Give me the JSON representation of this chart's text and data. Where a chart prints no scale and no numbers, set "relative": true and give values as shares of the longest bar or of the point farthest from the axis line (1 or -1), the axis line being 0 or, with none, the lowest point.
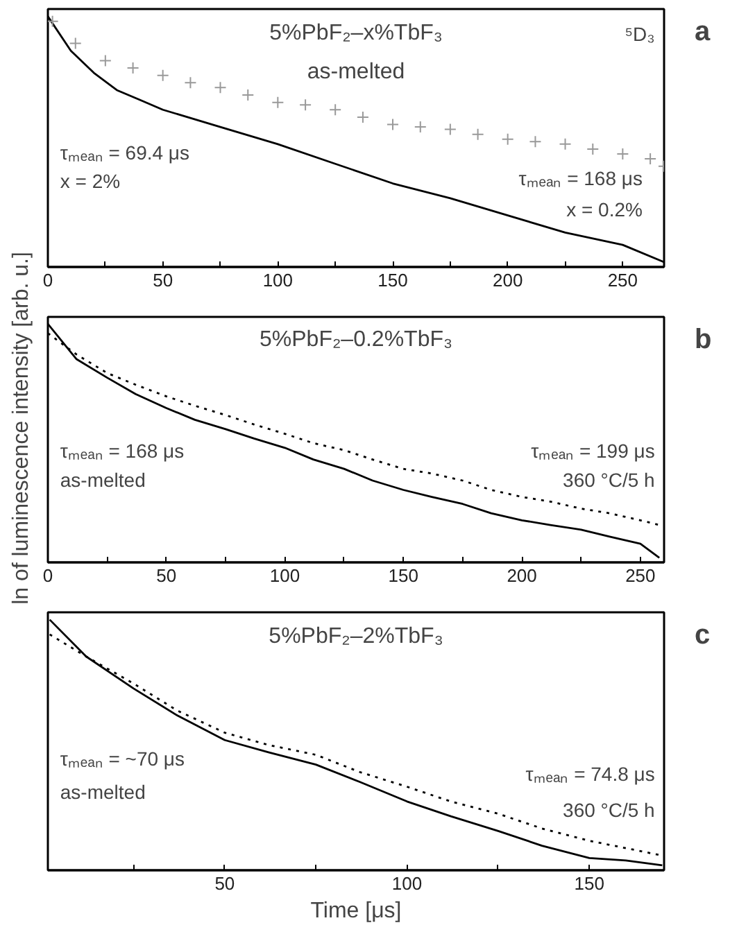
{
  "chart_data": [
    {
      "type": "line",
      "title": "5%PbF₂–x%TbF₃",
      "subtitle": "as-melted",
      "relative": true,
      "xlim": [
        0,
        268
      ],
      "xticks": [
        0,
        {
          "value": 25,
          "label": null
        },
        50,
        {
          "value": 75,
          "label": null
        },
        100,
        {
          "value": 125,
          "label": null
        },
        150,
        {
          "value": 175,
          "label": null
        },
        200,
        {
          "value": 225,
          "label": null
        },
        250
      ],
      "annotations": [
        "⁵D₃",
        "τₘₑₐₙ = 69.4 μs",
        "x = 2%",
        "τₘₑₐₙ = 168 μs",
        "x = 0.2%",
        "a"
      ],
      "series": [
        {
          "color": "#000000",
          "x": [
            0,
            10,
            20,
            30,
            40,
            50,
            75,
            100,
            125,
            150,
            175,
            200,
            225,
            250,
            268
          ],
          "values": [
            1.0,
            0.86,
            0.77,
            0.7,
            0.66,
            0.62,
            0.55,
            0.48,
            0.4,
            0.32,
            0.26,
            0.19,
            0.12,
            0.07,
            0.0
          ]
        },
        {
          "type": "scatter",
          "marker": "cross",
          "color": "#999999",
          "x": [
            2,
            12,
            25,
            37,
            50,
            62,
            75,
            87,
            100,
            112,
            125,
            137,
            150,
            162,
            175,
            187,
            200,
            212,
            225,
            237,
            250,
            262,
            268
          ],
          "values": [
            0.98,
            0.89,
            0.82,
            0.79,
            0.76,
            0.73,
            0.71,
            0.68,
            0.65,
            0.64,
            0.62,
            0.59,
            0.56,
            0.55,
            0.54,
            0.52,
            0.5,
            0.49,
            0.48,
            0.46,
            0.44,
            0.42,
            0.39
          ]
        }
      ]
    },
    {
      "type": "line",
      "title": "5%PbF₂–0.2%TbF₃",
      "relative": true,
      "xlim": [
        0,
        260
      ],
      "xticks": [
        0,
        {
          "value": 25,
          "label": null
        },
        50,
        {
          "value": 75,
          "label": null
        },
        100,
        {
          "value": 125,
          "label": null
        },
        150,
        {
          "value": 175,
          "label": null
        },
        200,
        {
          "value": 225,
          "label": null
        },
        250
      ],
      "ylabel": "ln of luminescence intensity [arb. u.]",
      "annotations": [
        "τₘₑₐₙ = 168 μs",
        "as-melted",
        "τₘₑₐₙ = 199 μs",
        "360 °C/5 h",
        "b"
      ],
      "series": [
        {
          "color": "#000000",
          "x": [
            0,
            12,
            25,
            37,
            50,
            62,
            75,
            87,
            100,
            112,
            125,
            137,
            150,
            162,
            175,
            187,
            200,
            212,
            225,
            237,
            250,
            258
          ],
          "values": [
            1.0,
            0.85,
            0.77,
            0.7,
            0.64,
            0.59,
            0.55,
            0.51,
            0.47,
            0.42,
            0.38,
            0.33,
            0.29,
            0.26,
            0.23,
            0.19,
            0.16,
            0.14,
            0.12,
            0.09,
            0.06,
            0.0
          ]
        },
        {
          "line_style": "dotted",
          "color": "#000000",
          "x": [
            0,
            12,
            25,
            37,
            50,
            62,
            75,
            87,
            100,
            112,
            125,
            137,
            150,
            162,
            175,
            187,
            200,
            212,
            225,
            237,
            250,
            258
          ],
          "values": [
            0.96,
            0.87,
            0.79,
            0.74,
            0.69,
            0.65,
            0.61,
            0.57,
            0.53,
            0.49,
            0.46,
            0.42,
            0.38,
            0.36,
            0.33,
            0.29,
            0.26,
            0.24,
            0.21,
            0.19,
            0.16,
            0.14
          ]
        }
      ]
    },
    {
      "type": "line",
      "title": "5%PbF₂–2%TbF₃",
      "relative": true,
      "xlim": [
        1.5,
        170.5
      ],
      "xticks": [
        {
          "value": 25,
          "label": null
        },
        50,
        {
          "value": 75,
          "label": null
        },
        100,
        {
          "value": 125,
          "label": null
        },
        150
      ],
      "xlabel": "Time [μs]",
      "annotations": [
        "τₘₑₐₙ = ~70 μs",
        "as-melted",
        "τₘₑₐₙ = 74.8 μs",
        "360 °C/5 h",
        "c"
      ],
      "series": [
        {
          "color": "#000000",
          "x": [
            2,
            12,
            25,
            37,
            50,
            62,
            75,
            87,
            100,
            112,
            125,
            137,
            150,
            160,
            170
          ],
          "values": [
            1.0,
            0.85,
            0.72,
            0.61,
            0.51,
            0.46,
            0.41,
            0.34,
            0.26,
            0.2,
            0.14,
            0.08,
            0.03,
            0.02,
            0.0
          ]
        },
        {
          "line_style": "dotted",
          "color": "#000000",
          "x": [
            2,
            12,
            25,
            37,
            50,
            62,
            75,
            87,
            100,
            112,
            125,
            137,
            150,
            160,
            170
          ],
          "values": [
            0.94,
            0.85,
            0.74,
            0.63,
            0.54,
            0.49,
            0.45,
            0.38,
            0.32,
            0.26,
            0.21,
            0.15,
            0.1,
            0.07,
            0.04
          ]
        }
      ]
    }
  ]
}
